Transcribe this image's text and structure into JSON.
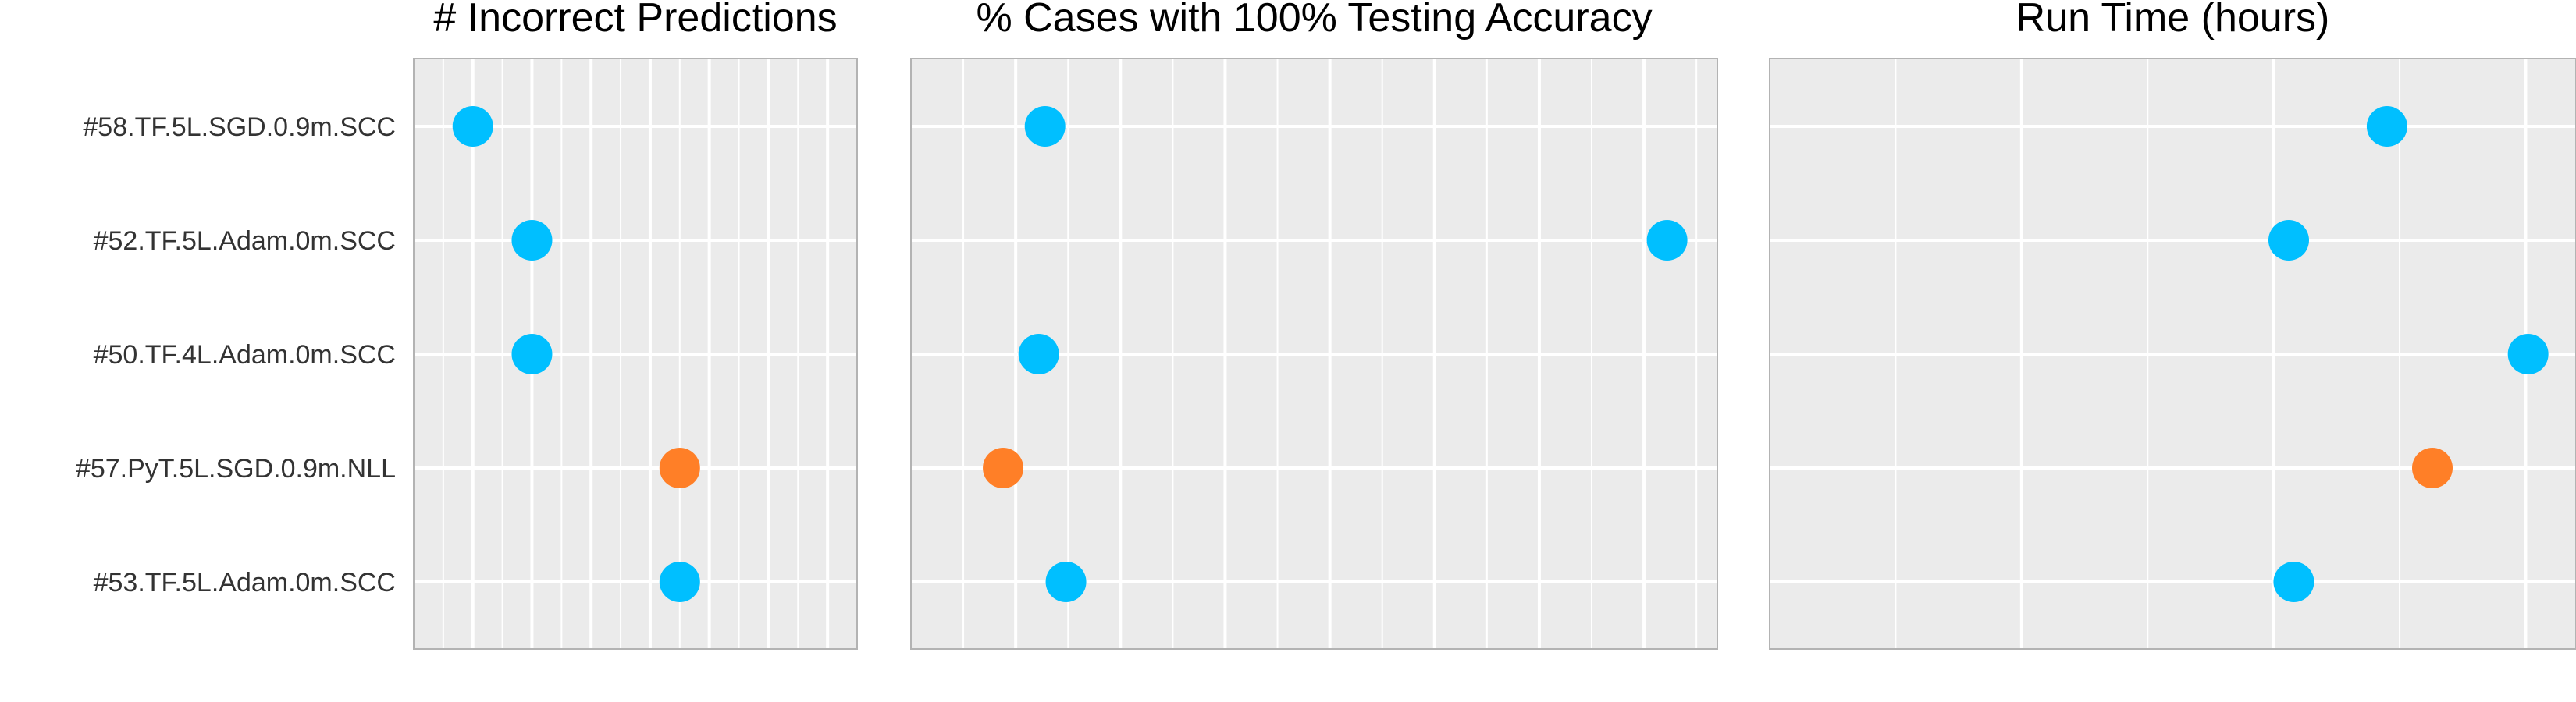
{
  "chart_data": [
    {
      "type": "scatter",
      "title": "# Incorrect Predictions",
      "categories": [
        "#58.TF.5L.SGD.0.9m.SCC",
        "#52.TF.5L.Adam.0m.SCC",
        "#50.TF.4L.Adam.0m.SCC",
        "#57.PyT.5L.SGD.0.9m.NLL",
        "#53.TF.5L.Adam.0m.SCC"
      ],
      "xlim": [
        0,
        7.5
      ],
      "grid": true,
      "points": [
        {
          "category": "#58.TF.5L.SGD.0.9m.SCC",
          "value": 1.0,
          "color": "#00BFFF"
        },
        {
          "category": "#52.TF.5L.Adam.0m.SCC",
          "value": 2.0,
          "color": "#00BFFF"
        },
        {
          "category": "#50.TF.4L.Adam.0m.SCC",
          "value": 2.0,
          "color": "#00BFFF"
        },
        {
          "category": "#57.PyT.5L.SGD.0.9m.NLL",
          "value": 4.5,
          "color": "#FF7F27"
        },
        {
          "category": "#53.TF.5L.Adam.0m.SCC",
          "value": 4.5,
          "color": "#00BFFF"
        }
      ]
    },
    {
      "type": "scatter",
      "title": "% Cases with 100% Testing Accuracy",
      "categories": [
        "#58.TF.5L.SGD.0.9m.SCC",
        "#52.TF.5L.Adam.0m.SCC",
        "#50.TF.4L.Adam.0m.SCC",
        "#57.PyT.5L.SGD.0.9m.NLL",
        "#53.TF.5L.Adam.0m.SCC"
      ],
      "xlim": [
        0,
        7.7
      ],
      "grid": true,
      "points": [
        {
          "category": "#58.TF.5L.SGD.0.9m.SCC",
          "value": 1.28,
          "color": "#00BFFF"
        },
        {
          "category": "#52.TF.5L.Adam.0m.SCC",
          "value": 7.22,
          "color": "#00BFFF"
        },
        {
          "category": "#50.TF.4L.Adam.0m.SCC",
          "value": 1.22,
          "color": "#00BFFF"
        },
        {
          "category": "#57.PyT.5L.SGD.0.9m.NLL",
          "value": 0.88,
          "color": "#FF7F27"
        },
        {
          "category": "#53.TF.5L.Adam.0m.SCC",
          "value": 1.48,
          "color": "#00BFFF"
        }
      ]
    },
    {
      "type": "scatter",
      "title": "Run Time (hours)",
      "categories": [
        "#58.TF.5L.SGD.0.9m.SCC",
        "#52.TF.5L.Adam.0m.SCC",
        "#50.TF.4L.Adam.0m.SCC",
        "#57.PyT.5L.SGD.0.9m.NLL",
        "#53.TF.5L.Adam.0m.SCC"
      ],
      "xlim": [
        0,
        3.2
      ],
      "grid": true,
      "points": [
        {
          "category": "#58.TF.5L.SGD.0.9m.SCC",
          "value": 2.45,
          "color": "#00BFFF"
        },
        {
          "category": "#52.TF.5L.Adam.0m.SCC",
          "value": 2.06,
          "color": "#00BFFF"
        },
        {
          "category": "#50.TF.4L.Adam.0m.SCC",
          "value": 3.01,
          "color": "#00BFFF"
        },
        {
          "category": "#57.PyT.5L.SGD.0.9m.NLL",
          "value": 2.63,
          "color": "#FF7F27"
        },
        {
          "category": "#53.TF.5L.Adam.0m.SCC",
          "value": 2.08,
          "color": "#00BFFF"
        }
      ]
    }
  ],
  "colors": {
    "panel_background": "#EBEBEB",
    "grid": "#FFFFFF",
    "panel_border": "#B3B3B3"
  }
}
